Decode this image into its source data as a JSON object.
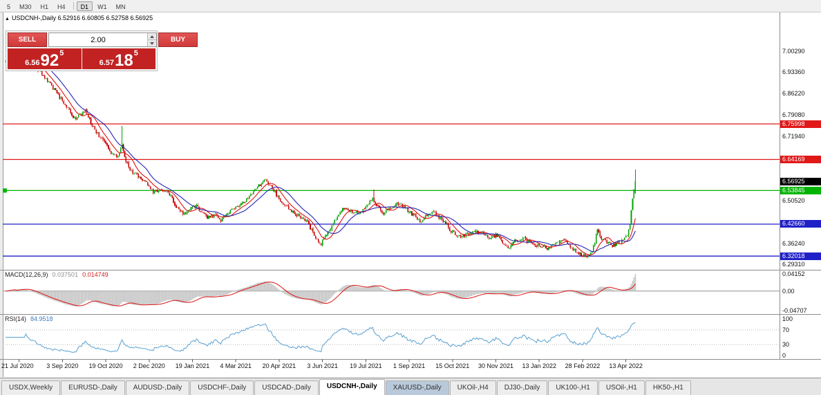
{
  "toolbar": {
    "buttons": [
      "5",
      "M30",
      "H1",
      "H4",
      "D1",
      "W1",
      "MN"
    ],
    "active": "D1",
    "divider_after": "H4"
  },
  "chart": {
    "marker": "▲",
    "title": "USDCNH-,Daily 6.52916 6.60805 6.52758 6.56925"
  },
  "trade_panel": {
    "sell_label": "SELL",
    "buy_label": "BUY",
    "volume": "2.00",
    "sell_price": {
      "big_figure": "6.56",
      "pips": "92",
      "pipette": "5"
    },
    "buy_price": {
      "big_figure": "6.57",
      "pips": "18",
      "pipette": "5"
    },
    "button_color": "#d03a3a",
    "price_box_color": "#c22222"
  },
  "chart_data": {
    "type": "candlestick",
    "symbol": "USDCNH-",
    "timeframe": "Daily",
    "ohlc": {
      "open": 6.52916,
      "high": 6.60805,
      "low": 6.52758,
      "close": 6.56925
    },
    "bars_total": 465,
    "price_axis": {
      "visible_max": 7.1262,
      "visible_min": 6.277,
      "plain_ticks": [
        7.0029,
        6.9336,
        6.8622,
        6.7908,
        6.7194,
        6.5052,
        6.3624,
        6.2931
      ]
    },
    "current_price_marker": {
      "price": 6.56925,
      "label": "6.56925",
      "color": "#000000"
    },
    "hlines": [
      {
        "price": 6.75998,
        "label": "6.75998",
        "color": "#e01818"
      },
      {
        "price": 6.64169,
        "label": "6.64169",
        "color": "#e01818"
      },
      {
        "price": 6.53845,
        "label": "6.53845",
        "color": "#00b400"
      },
      {
        "price": 6.4266,
        "label": "6.42660",
        "color": "#2020c8"
      },
      {
        "price": 6.32018,
        "label": "6.32018",
        "color": "#2020c8"
      }
    ],
    "x_axis": {
      "labels": [
        "21 Jul 2020",
        "3 Sep 2020",
        "19 Oct 2020",
        "2 Dec 2020",
        "19 Jan 2021",
        "4 Mar 2021",
        "20 Apr 2021",
        "3 Jun 2021",
        "19 Jul 2021",
        "1 Sep 2021",
        "15 Oct 2021",
        "30 Nov 2021",
        "13 Jan 2022",
        "28 Feb 2022",
        "13 Apr 2022"
      ],
      "bar_indices": [
        10,
        42,
        74,
        106,
        138,
        170,
        202,
        234,
        266,
        298,
        330,
        362,
        394,
        426,
        458
      ]
    },
    "trajectory": [
      [
        0,
        6.968
      ],
      [
        6,
        6.982
      ],
      [
        12,
        6.992
      ],
      [
        16,
        6.975
      ],
      [
        22,
        6.952
      ],
      [
        28,
        6.922
      ],
      [
        34,
        6.885
      ],
      [
        40,
        6.85
      ],
      [
        46,
        6.812
      ],
      [
        51,
        6.778
      ],
      [
        55,
        6.788
      ],
      [
        59,
        6.808
      ],
      [
        63,
        6.762
      ],
      [
        67,
        6.732
      ],
      [
        73,
        6.703
      ],
      [
        78,
        6.663
      ],
      [
        83,
        6.652
      ],
      [
        86,
        6.692
      ],
      [
        89,
        6.635
      ],
      [
        93,
        6.603
      ],
      [
        99,
        6.582
      ],
      [
        105,
        6.557
      ],
      [
        109,
        6.532
      ],
      [
        115,
        6.546
      ],
      [
        121,
        6.527
      ],
      [
        127,
        6.477
      ],
      [
        131,
        6.462
      ],
      [
        137,
        6.477
      ],
      [
        141,
        6.49
      ],
      [
        145,
        6.462
      ],
      [
        149,
        6.447
      ],
      [
        155,
        6.457
      ],
      [
        159,
        6.442
      ],
      [
        163,
        6.462
      ],
      [
        167,
        6.472
      ],
      [
        173,
        6.49
      ],
      [
        179,
        6.512
      ],
      [
        185,
        6.547
      ],
      [
        191,
        6.572
      ],
      [
        195,
        6.557
      ],
      [
        199,
        6.532
      ],
      [
        205,
        6.492
      ],
      [
        211,
        6.472
      ],
      [
        217,
        6.452
      ],
      [
        223,
        6.432
      ],
      [
        229,
        6.382
      ],
      [
        233,
        6.362
      ],
      [
        237,
        6.392
      ],
      [
        241,
        6.422
      ],
      [
        247,
        6.467
      ],
      [
        251,
        6.482
      ],
      [
        257,
        6.462
      ],
      [
        263,
        6.472
      ],
      [
        267,
        6.492
      ],
      [
        271,
        6.508
      ],
      [
        275,
        6.487
      ],
      [
        279,
        6.462
      ],
      [
        285,
        6.482
      ],
      [
        291,
        6.497
      ],
      [
        297,
        6.472
      ],
      [
        301,
        6.457
      ],
      [
        307,
        6.432
      ],
      [
        311,
        6.457
      ],
      [
        315,
        6.472
      ],
      [
        319,
        6.452
      ],
      [
        325,
        6.432
      ],
      [
        329,
        6.402
      ],
      [
        335,
        6.387
      ],
      [
        341,
        6.392
      ],
      [
        347,
        6.402
      ],
      [
        353,
        6.392
      ],
      [
        357,
        6.382
      ],
      [
        363,
        6.392
      ],
      [
        367,
        6.367
      ],
      [
        371,
        6.347
      ],
      [
        377,
        6.372
      ],
      [
        383,
        6.377
      ],
      [
        389,
        6.362
      ],
      [
        395,
        6.352
      ],
      [
        401,
        6.347
      ],
      [
        407,
        6.362
      ],
      [
        413,
        6.372
      ],
      [
        419,
        6.342
      ],
      [
        425,
        6.327
      ],
      [
        429,
        6.317
      ],
      [
        433,
        6.332
      ],
      [
        437,
        6.403
      ],
      [
        440,
        6.382
      ],
      [
        444,
        6.367
      ],
      [
        448,
        6.357
      ],
      [
        452,
        6.362
      ],
      [
        456,
        6.373
      ],
      [
        459,
        6.386
      ],
      [
        461,
        6.425
      ],
      [
        462,
        6.472
      ],
      [
        463,
        6.512
      ],
      [
        464,
        6.543
      ],
      [
        465,
        6.569
      ]
    ],
    "special_wicks": [
      {
        "bar": 86,
        "up": 0.057
      },
      {
        "bar": 272,
        "up": 0.027
      }
    ],
    "indicators": {
      "macd": {
        "name": "MACD(12,26,9)",
        "fast": 12,
        "slow": 26,
        "signal": 9,
        "value_main": "0.037501",
        "value_signal": "0.014749",
        "scale_labels": [
          "0.04152",
          "0.00",
          "-0.04707"
        ],
        "scale_max": 0.04152,
        "scale_min": -0.04707
      },
      "rsi": {
        "name": "RSI(14)",
        "period": 14,
        "value": "84.9518",
        "scale_labels": [
          "100",
          "70",
          "30",
          "0"
        ],
        "scale_values": [
          100,
          70,
          30,
          0
        ],
        "levels": [
          70,
          30
        ]
      }
    },
    "colors": {
      "up": "#00a000",
      "down": "#c80000",
      "ma_fast": "#dd1111",
      "ma_slow": "#2424b4",
      "macd_hist": "#c4c4c4",
      "macd_signal": "#dd1111",
      "rsi_line": "#58a0d0"
    }
  },
  "tab_bar": {
    "tabs": [
      "USDX,Weekly",
      "EURUSD-,Daily",
      "AUDUSD-,Daily",
      "USDCHF-,Daily",
      "USDCAD-,Daily",
      "USDCNH-,Daily",
      "XAUUSD-,Daily",
      "UKOil-,H4",
      "DJ30-,Daily",
      "UK100-,H1",
      "USOil-,H1",
      "HK50-,H1"
    ],
    "active": "USDCNH-,Daily",
    "highlighted": "XAUUSD-,Daily"
  }
}
